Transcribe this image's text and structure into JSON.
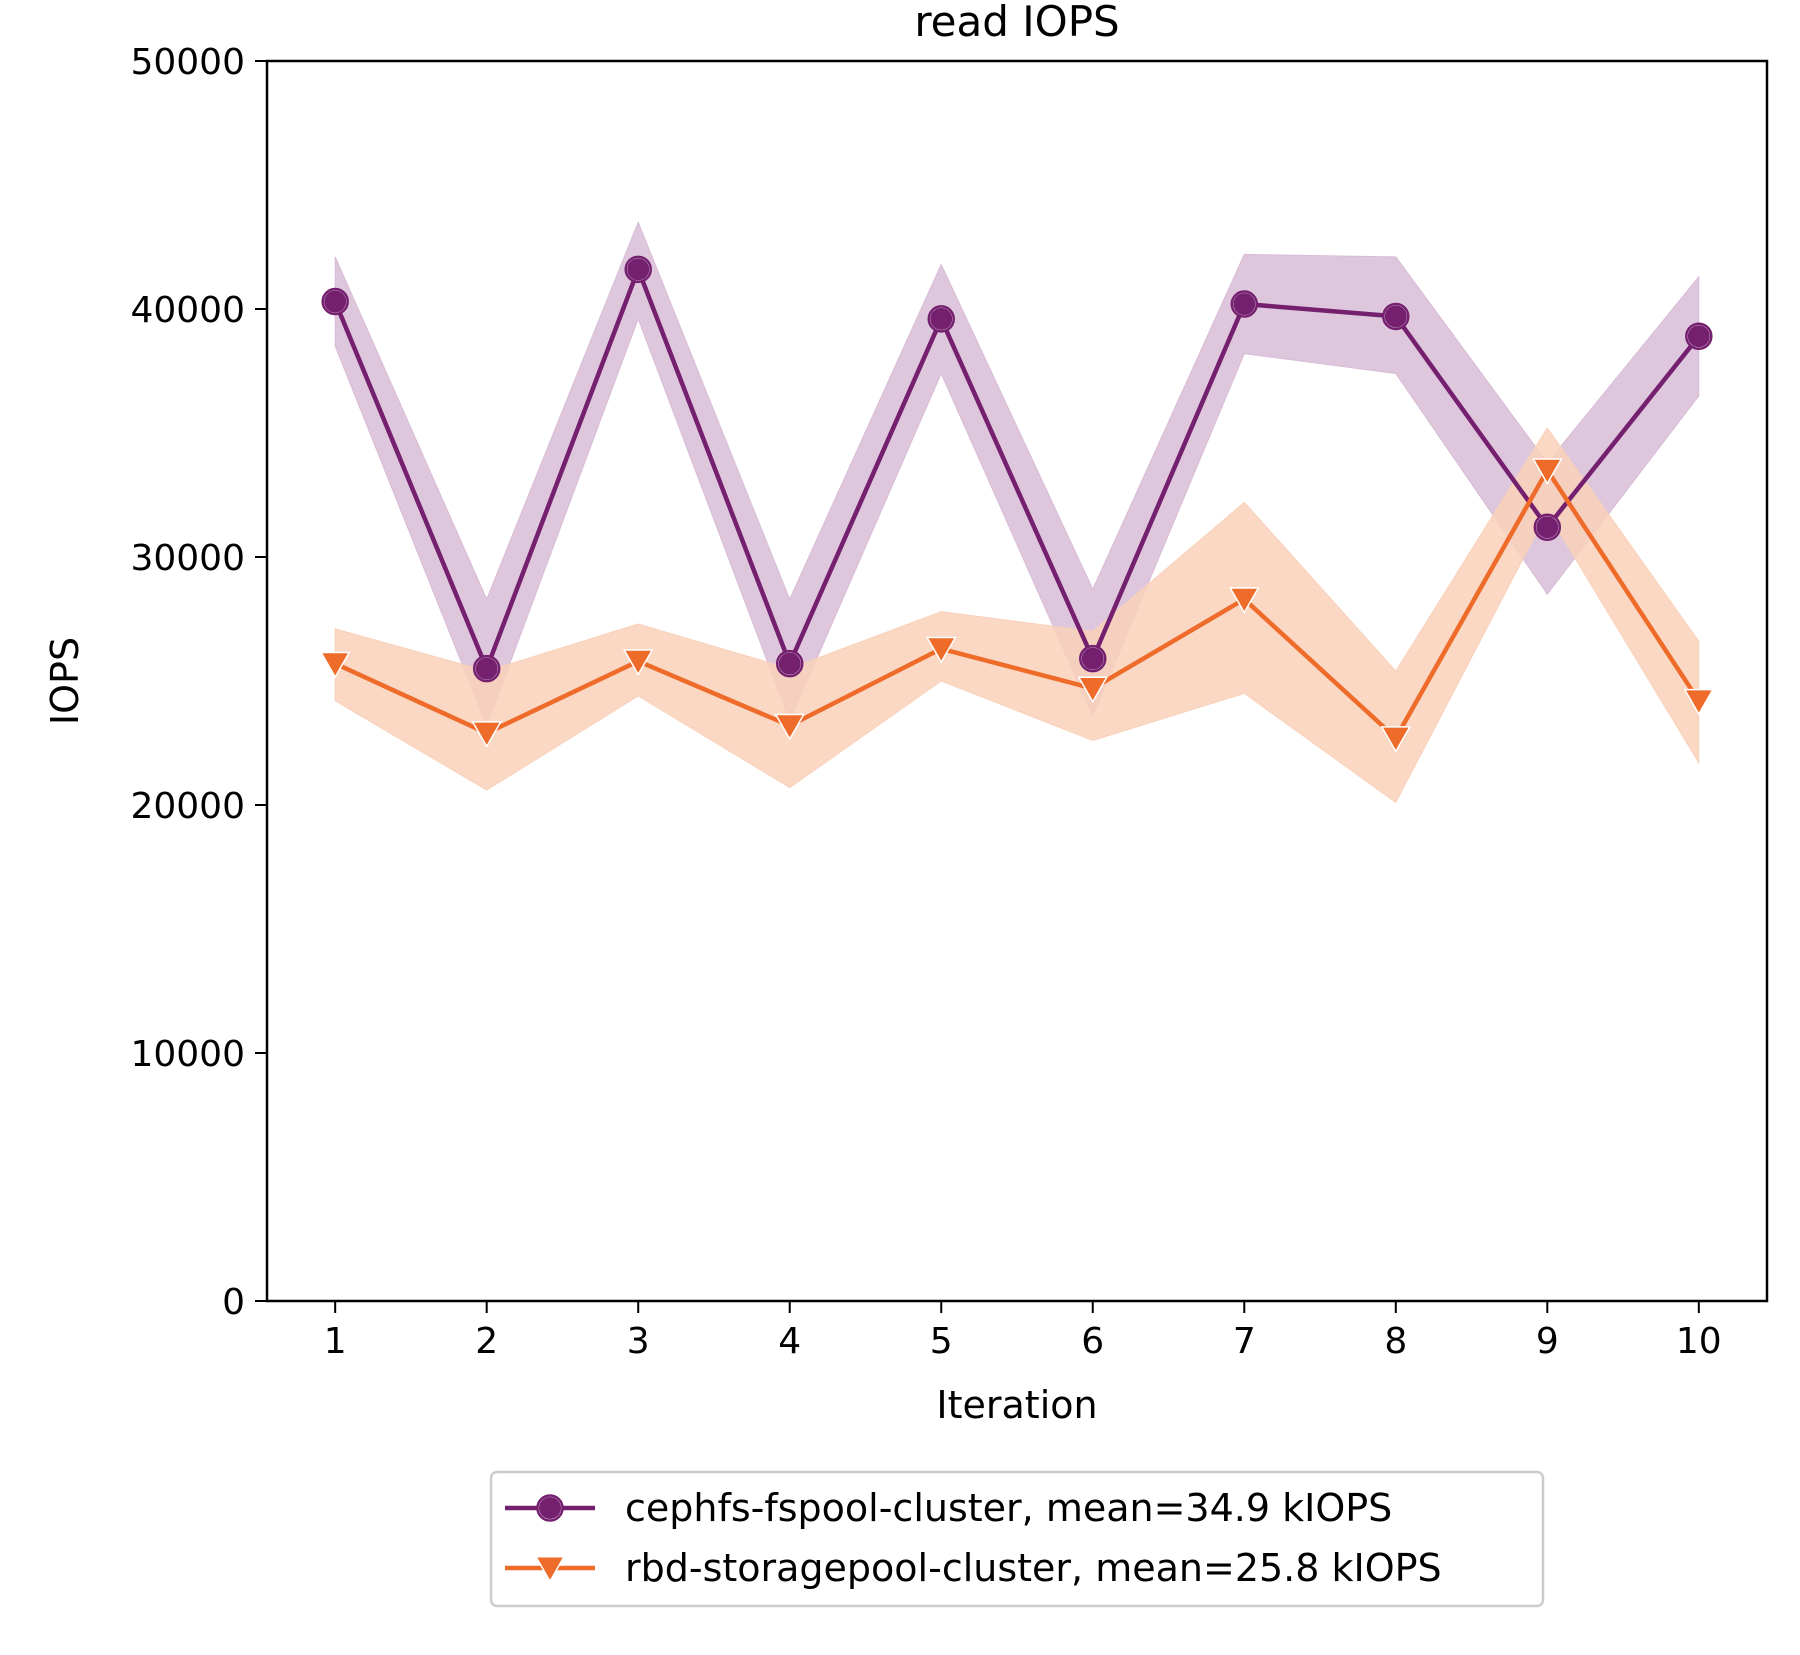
{
  "chart_data": {
    "type": "line",
    "title": "read IOPS",
    "xlabel": "Iteration",
    "ylabel": "IOPS",
    "xlim": [
      0.55,
      10.45
    ],
    "ylim": [
      0,
      50000
    ],
    "x": [
      1,
      2,
      3,
      4,
      5,
      6,
      7,
      8,
      9,
      10
    ],
    "x_ticks": [
      "1",
      "2",
      "3",
      "4",
      "5",
      "6",
      "7",
      "8",
      "9",
      "10"
    ],
    "y_ticks": [
      "0",
      "10000",
      "20000",
      "30000",
      "40000",
      "50000"
    ],
    "y_tick_values": [
      0,
      10000,
      20000,
      30000,
      40000,
      50000
    ],
    "grid": false,
    "legend_position": "bottom-center outside",
    "series": [
      {
        "name": "cephfs-fspool-cluster, mean=34.9 kIOPS",
        "color": "#74206f",
        "band_color": "#d8bcd6",
        "marker": "circle",
        "values": [
          40300,
          25500,
          41600,
          25700,
          39600,
          25900,
          40200,
          39700,
          31200,
          38900
        ],
        "lower": [
          38500,
          23200,
          39600,
          23400,
          37400,
          23600,
          38200,
          37400,
          28500,
          36500
        ],
        "upper": [
          42100,
          28300,
          43500,
          28300,
          41800,
          28700,
          42200,
          42100,
          33800,
          41300
        ]
      },
      {
        "name": "rbd-storagepool-cluster, mean=25.8 kIOPS",
        "color": "#ee6b2a",
        "band_color": "#f9d1ba",
        "marker": "triangle-down",
        "values": [
          25700,
          22900,
          25800,
          23200,
          26300,
          24700,
          28300,
          22700,
          33500,
          24200
        ],
        "lower": [
          24200,
          20600,
          24400,
          20700,
          25000,
          22600,
          24500,
          20100,
          31800,
          21700
        ],
        "upper": [
          27100,
          25400,
          27300,
          25500,
          27800,
          27000,
          32200,
          25400,
          35200,
          26600
        ]
      }
    ]
  }
}
